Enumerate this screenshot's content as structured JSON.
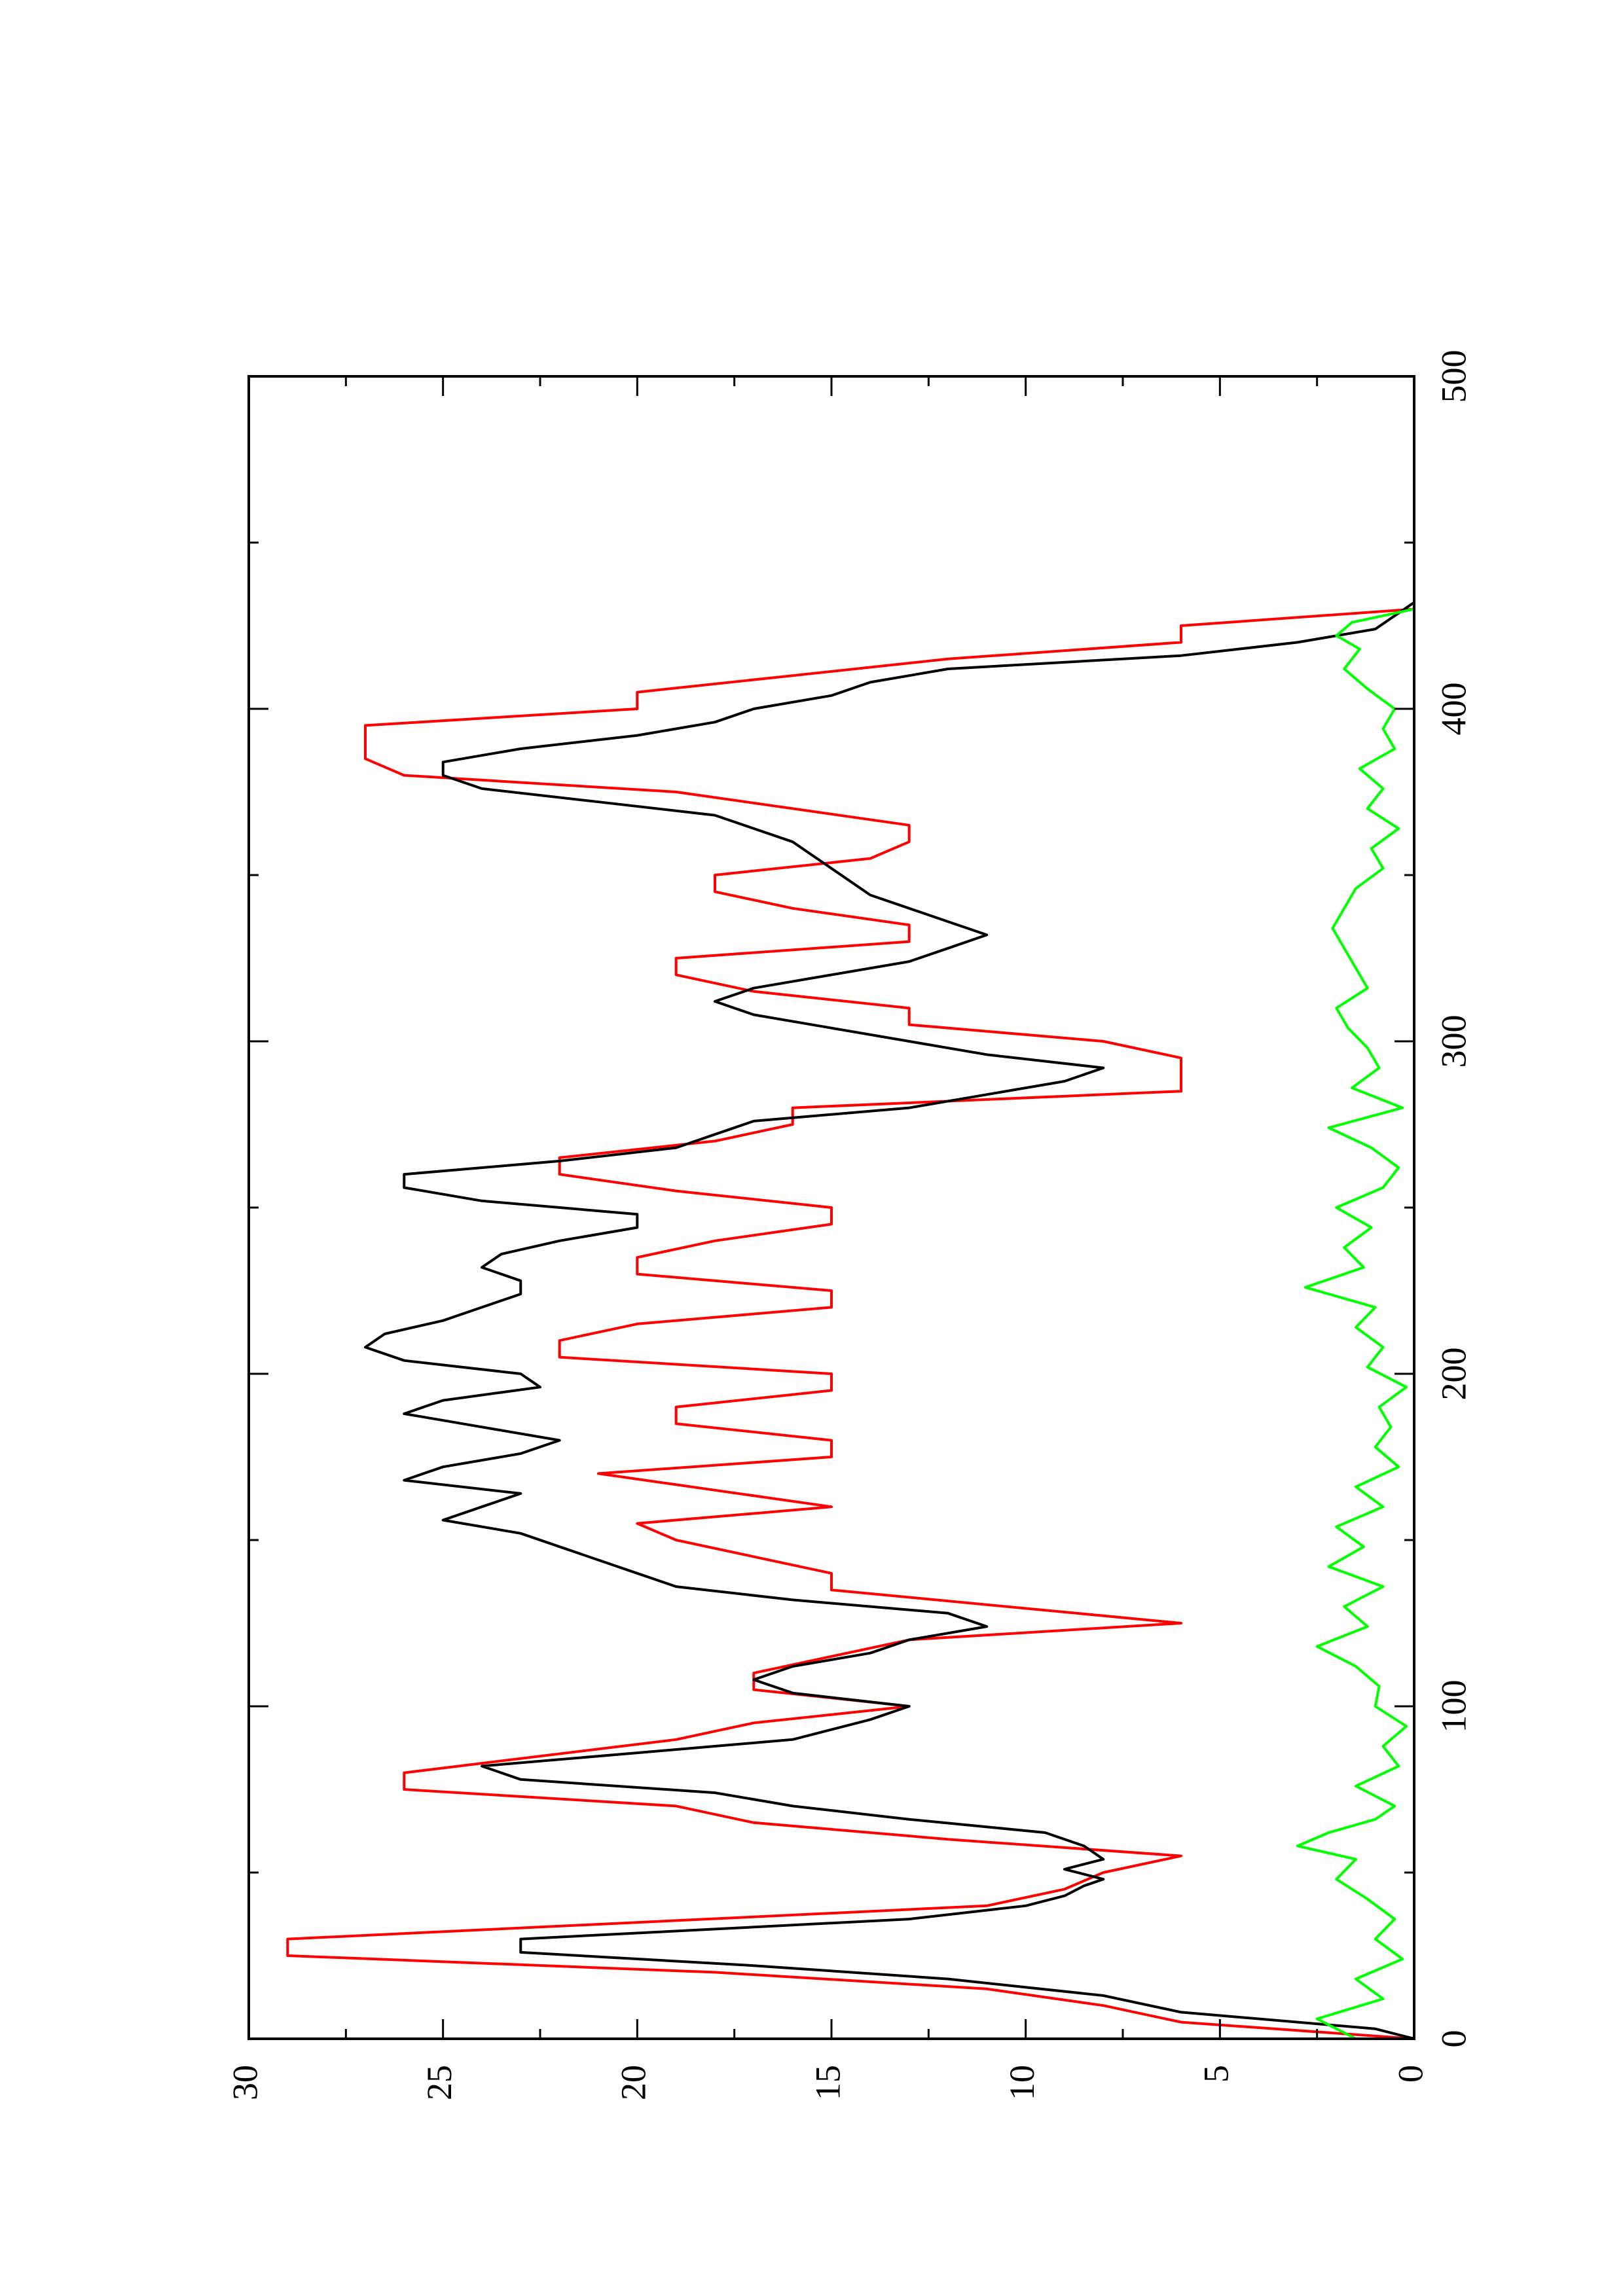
{
  "chart_data": {
    "type": "line",
    "title": "",
    "xlabel": "",
    "ylabel": "",
    "xlim": [
      0,
      500
    ],
    "ylim": [
      0,
      30
    ],
    "orientation": "rotated 90 degrees counter-clockwise on page",
    "grid": false,
    "legend": "none",
    "x_ticks": [
      "0",
      "100",
      "200",
      "300",
      "400",
      "500"
    ],
    "y_ticks": [
      "0",
      "5",
      "10",
      "15",
      "20",
      "25",
      "30"
    ],
    "series": [
      {
        "color": "#ff0000",
        "x": [
          0,
          5,
          10,
          15,
          20,
          25,
          30,
          40,
          45,
          50,
          55,
          60,
          65,
          70,
          75,
          80,
          90,
          95,
          100,
          105,
          110,
          120,
          125,
          135,
          140,
          145,
          150,
          155,
          160,
          165,
          170,
          175,
          180,
          185,
          190,
          195,
          200,
          205,
          210,
          215,
          220,
          225,
          230,
          235,
          240,
          245,
          250,
          255,
          260,
          265,
          270,
          275,
          280,
          285,
          290,
          295,
          300,
          305,
          310,
          315,
          320,
          325,
          330,
          335,
          340,
          345,
          350,
          355,
          360,
          365,
          370,
          375,
          380,
          385,
          390,
          395,
          400,
          405,
          410,
          415,
          420,
          425,
          430
        ],
        "y": [
          0,
          6,
          8,
          11,
          18,
          29,
          29,
          11,
          9,
          8,
          6,
          12,
          17,
          19,
          26,
          26,
          19,
          17,
          13,
          17,
          17,
          13,
          6,
          15,
          15,
          17,
          19,
          20,
          15,
          18,
          21,
          15,
          15,
          19,
          19,
          15,
          15,
          22,
          22,
          20,
          15,
          15,
          20,
          20,
          18,
          15,
          15,
          19,
          22,
          22,
          18,
          16,
          16,
          6,
          6,
          6,
          8,
          13,
          13,
          17,
          19,
          19,
          13,
          13,
          16,
          18,
          18,
          14,
          13,
          13,
          16,
          19,
          26,
          27,
          27,
          27,
          20,
          20,
          16,
          12,
          6,
          6,
          0
        ]
      },
      {
        "color": "#000000",
        "x": [
          0,
          3,
          8,
          13,
          18,
          22,
          26,
          30,
          33,
          36,
          40,
          43,
          46,
          48,
          51,
          54,
          58,
          62,
          66,
          70,
          74,
          78,
          82,
          86,
          90,
          93,
          96,
          100,
          104,
          108,
          112,
          116,
          120,
          124,
          128,
          132,
          136,
          140,
          144,
          148,
          152,
          156,
          160,
          164,
          168,
          172,
          176,
          180,
          184,
          188,
          192,
          196,
          200,
          204,
          208,
          212,
          216,
          220,
          224,
          228,
          232,
          236,
          240,
          244,
          248,
          252,
          256,
          260,
          264,
          268,
          272,
          276,
          280,
          284,
          288,
          292,
          296,
          300,
          304,
          308,
          312,
          316,
          320,
          324,
          328,
          332,
          336,
          340,
          344,
          348,
          352,
          356,
          360,
          364,
          368,
          372,
          376,
          380,
          384,
          388,
          392,
          396,
          400,
          404,
          408,
          412,
          416,
          420,
          424,
          428,
          432
        ],
        "y": [
          0,
          1,
          6,
          8,
          12,
          17,
          23,
          23,
          18,
          13,
          10,
          9,
          8.5,
          8,
          9,
          8,
          8.5,
          9.5,
          13,
          16,
          18,
          23,
          24,
          20,
          16,
          15,
          14,
          13,
          16,
          17,
          16,
          14,
          13,
          11,
          12,
          16,
          19,
          20,
          21,
          22,
          23,
          25,
          24,
          23,
          26,
          25,
          23,
          22,
          24,
          26,
          25,
          22.5,
          23,
          26,
          27,
          26.5,
          25,
          24,
          23,
          23,
          24,
          23.5,
          22,
          20,
          20,
          24,
          26,
          26,
          22,
          19,
          18,
          17,
          13,
          11,
          9,
          8,
          11,
          13,
          15,
          17,
          18,
          17,
          15,
          13,
          12,
          11,
          12,
          13,
          14,
          14.5,
          15,
          15.5,
          16,
          17,
          18,
          21,
          24,
          25,
          25,
          23,
          20,
          18,
          17,
          15,
          14,
          12,
          6,
          3,
          1,
          0.5,
          0
        ]
      },
      {
        "color": "#00ff00",
        "x": [
          0,
          6,
          12,
          18,
          24,
          30,
          36,
          42,
          48,
          54,
          58,
          62,
          66,
          70,
          76,
          82,
          88,
          94,
          100,
          106,
          112,
          118,
          124,
          130,
          136,
          142,
          148,
          154,
          160,
          166,
          172,
          178,
          184,
          190,
          196,
          202,
          208,
          214,
          220,
          226,
          232,
          238,
          244,
          250,
          256,
          262,
          268,
          274,
          280,
          286,
          292,
          298,
          304,
          310,
          316,
          322,
          328,
          334,
          340,
          346,
          352,
          358,
          364,
          370,
          376,
          382,
          388,
          394,
          400,
          406,
          412,
          418,
          422,
          426,
          430
        ],
        "y": [
          1.5,
          2.5,
          0.8,
          1.5,
          0.3,
          1,
          0.5,
          1.2,
          2,
          1.5,
          3,
          2.2,
          1,
          0.5,
          1.5,
          0.4,
          0.8,
          0.2,
          1,
          0.9,
          1.5,
          2.5,
          1.2,
          1.8,
          0.8,
          2.2,
          1.3,
          2,
          0.8,
          1.5,
          0.4,
          1,
          0.6,
          0.9,
          0.2,
          1.2,
          0.8,
          1.5,
          1,
          2.8,
          1.3,
          1.8,
          1.1,
          2,
          0.8,
          0.4,
          1.1,
          2.2,
          0.3,
          1.6,
          0.9,
          1.2,
          1.7,
          2,
          1.2,
          1.5,
          1.8,
          2.1,
          1.8,
          1.5,
          0.8,
          1.1,
          0.4,
          1.2,
          0.8,
          1.4,
          0.5,
          0.8,
          0.5,
          1.2,
          1.8,
          1.4,
          2,
          1.6,
          0
        ]
      }
    ]
  }
}
